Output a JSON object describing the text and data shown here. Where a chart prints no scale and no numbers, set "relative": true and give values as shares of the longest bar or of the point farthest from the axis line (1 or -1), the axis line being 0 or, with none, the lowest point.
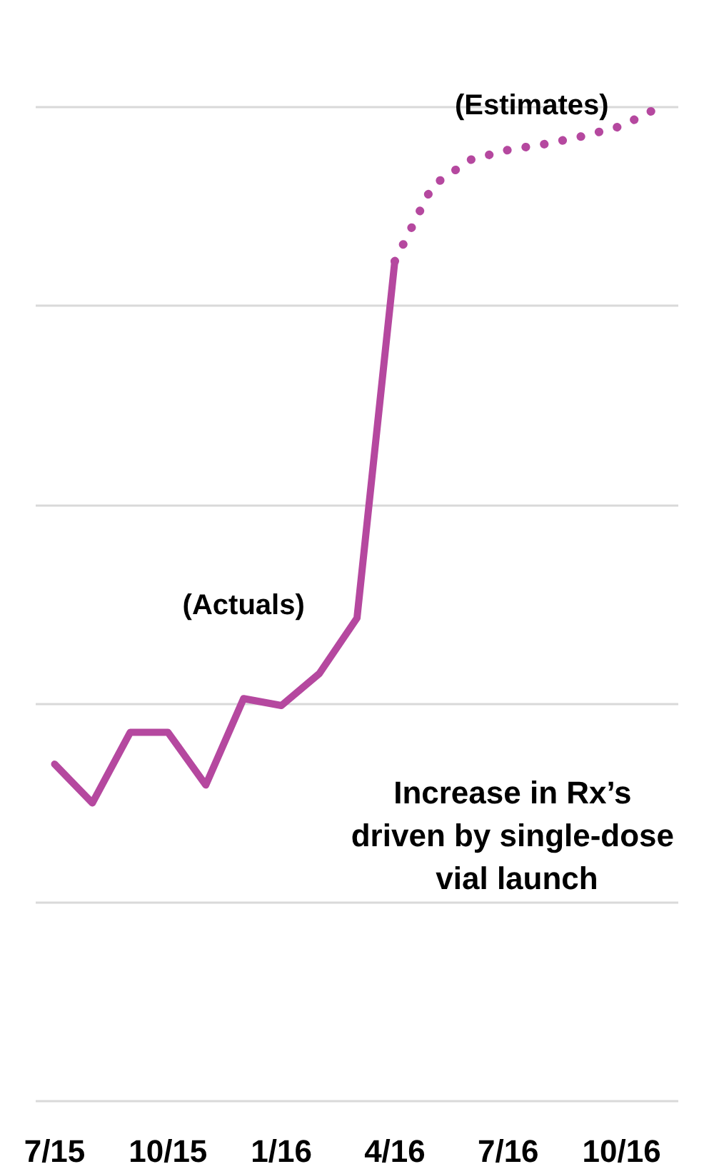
{
  "chart_data": {
    "type": "line",
    "relative": true,
    "grid": "y",
    "marker": "none",
    "categories": [
      "7/15",
      null,
      null,
      "10/15",
      null,
      null,
      "1/16",
      null,
      null,
      "4/16",
      null,
      null,
      "7/16",
      null,
      null,
      "10/16",
      null
    ],
    "series": [
      {
        "name": "(Actuals)",
        "color": "#b5489f",
        "line_style": "solid",
        "values": [
          0.339,
          0.3,
          0.371,
          0.371,
          0.318,
          0.405,
          0.398,
          0.43,
          0.486,
          0.845,
          null,
          null,
          null,
          null,
          null,
          null,
          null
        ]
      },
      {
        "name": "(Estimates)",
        "color": "#b5489f",
        "line_style": "dotted",
        "values": [
          null,
          null,
          null,
          null,
          null,
          null,
          null,
          null,
          null,
          0.845,
          0.921,
          0.947,
          0.957,
          0.963,
          0.971,
          0.981,
          1.0
        ]
      }
    ],
    "annotations": [
      "Increase in Rx’s driven by single-dose vial launch"
    ]
  }
}
